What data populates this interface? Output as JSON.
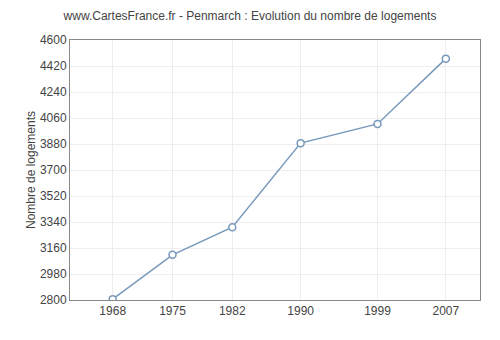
{
  "chart_data": {
    "type": "line",
    "title": "www.CartesFrance.fr - Penmarch : Evolution du nombre de logements",
    "ylabel": "Nombre de logements",
    "x": [
      1968,
      1975,
      1982,
      1990,
      1999,
      2007
    ],
    "values": [
      2806,
      3113,
      3304,
      3886,
      4019,
      4471
    ],
    "color": "#7799bb",
    "marker": "circle",
    "xlim": [
      1963,
      2011
    ],
    "xticks": [
      1968,
      1975,
      1982,
      1990,
      1999,
      2007
    ],
    "ylim": [
      2800,
      4600
    ],
    "yticks": [
      2800,
      2980,
      3160,
      3340,
      3520,
      3700,
      3880,
      4060,
      4240,
      4420,
      4600
    ],
    "grid": true
  }
}
